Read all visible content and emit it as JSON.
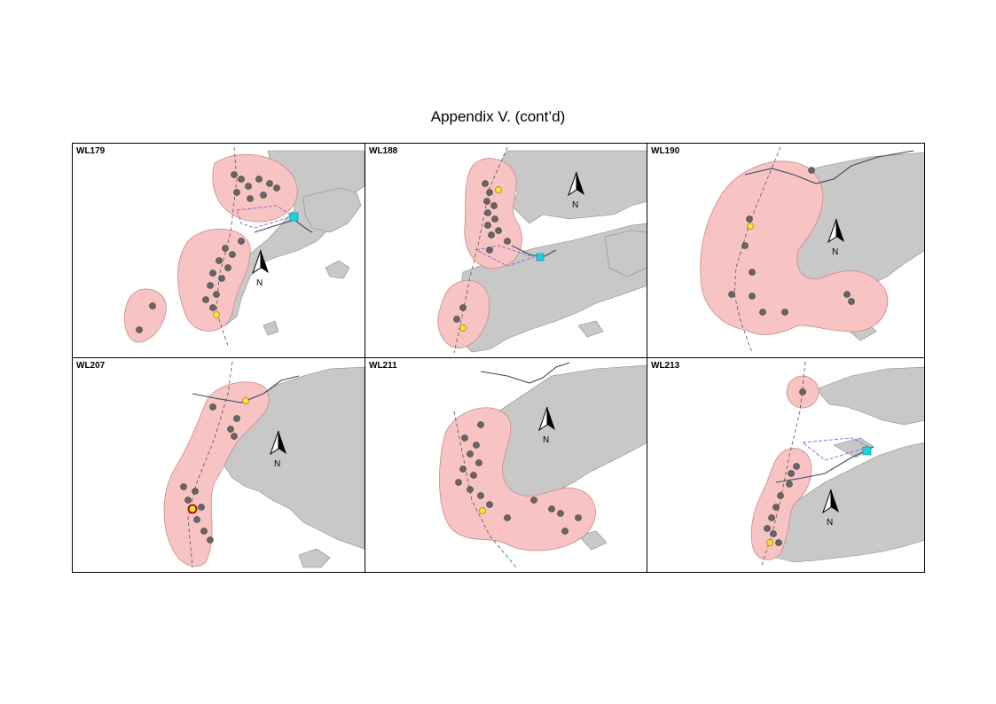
{
  "title": "Appendix V.  (cont’d)",
  "north_label": "N",
  "panels": [
    {
      "label": "WL179"
    },
    {
      "label": "WL188"
    },
    {
      "label": "WL190"
    },
    {
      "label": "WL207"
    },
    {
      "label": "WL211"
    },
    {
      "label": "WL213"
    }
  ],
  "colors": {
    "buffer": "#f8c3c3",
    "land": "#c8c8c8",
    "sighting": "#666666",
    "highlight": "#ffe033",
    "marker": "#22d0e0"
  }
}
